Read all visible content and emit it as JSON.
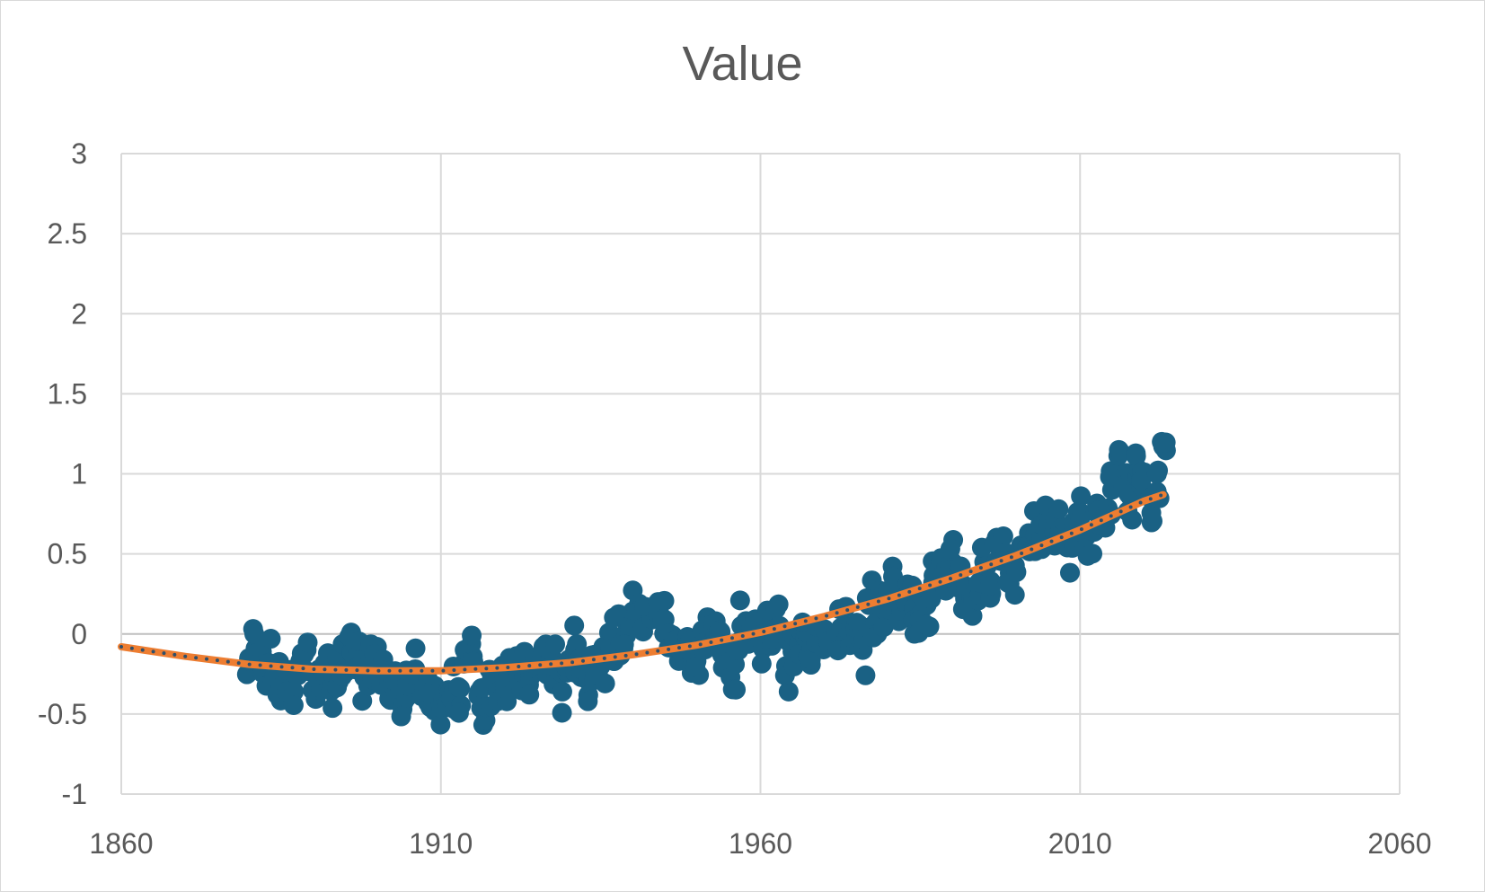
{
  "chart_data": {
    "type": "scatter",
    "title": "Value",
    "xlabel": "",
    "ylabel": "",
    "xlim": [
      1860,
      2060
    ],
    "ylim": [
      -1,
      3
    ],
    "x_ticks": [
      "1860",
      "1910",
      "1960",
      "2010",
      "2060"
    ],
    "y_ticks": [
      "-1",
      "-0.5",
      "0",
      "0.5",
      "1",
      "1.5",
      "2",
      "2.5",
      "3"
    ],
    "grid": true,
    "legend": "none",
    "colors": {
      "points": "#1a6184",
      "trend": "#ed7d31",
      "trend_dots": "#2f4f6a",
      "grid": "#d9d9d9",
      "text": "#595959"
    },
    "series": [
      {
        "type": "scatter",
        "x": [
          1880,
          1881,
          1882,
          1883,
          1884,
          1885,
          1886,
          1887,
          1888,
          1889,
          1890,
          1891,
          1892,
          1893,
          1894,
          1895,
          1896,
          1897,
          1898,
          1899,
          1900,
          1901,
          1902,
          1903,
          1904,
          1905,
          1906,
          1907,
          1908,
          1909,
          1910,
          1911,
          1912,
          1913,
          1914,
          1915,
          1916,
          1917,
          1918,
          1919,
          1920,
          1921,
          1922,
          1923,
          1924,
          1925,
          1926,
          1927,
          1928,
          1929,
          1930,
          1931,
          1932,
          1933,
          1934,
          1935,
          1936,
          1937,
          1938,
          1939,
          1940,
          1941,
          1942,
          1943,
          1944,
          1945,
          1946,
          1947,
          1948,
          1949,
          1950,
          1951,
          1952,
          1953,
          1954,
          1955,
          1956,
          1957,
          1958,
          1959,
          1960,
          1961,
          1962,
          1963,
          1964,
          1965,
          1966,
          1967,
          1968,
          1969,
          1970,
          1971,
          1972,
          1973,
          1974,
          1975,
          1976,
          1977,
          1978,
          1979,
          1980,
          1981,
          1982,
          1983,
          1984,
          1985,
          1986,
          1987,
          1988,
          1989,
          1990,
          1991,
          1992,
          1993,
          1994,
          1995,
          1996,
          1997,
          1998,
          1999,
          2000,
          2001,
          2002,
          2003,
          2004,
          2005,
          2006,
          2007,
          2008,
          2009,
          2010,
          2011,
          2012,
          2013,
          2014,
          2015,
          2016,
          2017,
          2018,
          2019,
          2020,
          2021,
          2022,
          2023
        ],
        "y": [
          -0.17,
          -0.09,
          -0.11,
          -0.18,
          -0.28,
          -0.33,
          -0.31,
          -0.36,
          -0.17,
          -0.1,
          -0.35,
          -0.22,
          -0.27,
          -0.31,
          -0.3,
          -0.22,
          -0.11,
          -0.11,
          -0.27,
          -0.17,
          -0.08,
          -0.16,
          -0.28,
          -0.37,
          -0.47,
          -0.26,
          -0.22,
          -0.39,
          -0.43,
          -0.48,
          -0.43,
          -0.44,
          -0.36,
          -0.34,
          -0.15,
          -0.14,
          -0.36,
          -0.46,
          -0.3,
          -0.27,
          -0.27,
          -0.19,
          -0.28,
          -0.26,
          -0.27,
          -0.22,
          -0.1,
          -0.22,
          -0.2,
          -0.36,
          -0.16,
          -0.1,
          -0.16,
          -0.29,
          -0.13,
          -0.2,
          -0.15,
          -0.03,
          -0.02,
          -0.01,
          0.13,
          0.19,
          0.07,
          0.09,
          0.2,
          0.09,
          -0.07,
          -0.03,
          -0.11,
          -0.11,
          -0.17,
          -0.07,
          0.01,
          0.08,
          -0.13,
          -0.14,
          -0.19,
          0.05,
          0.06,
          0.03,
          -0.03,
          0.06,
          0.03,
          0.05,
          -0.2,
          -0.11,
          -0.06,
          -0.02,
          -0.08,
          0.05,
          0.03,
          -0.08,
          0.01,
          0.16,
          -0.07,
          -0.01,
          -0.1,
          0.18,
          0.07,
          0.16,
          0.26,
          0.32,
          0.14,
          0.31,
          0.16,
          0.12,
          0.18,
          0.32,
          0.39,
          0.27,
          0.45,
          0.4,
          0.22,
          0.23,
          0.31,
          0.45,
          0.33,
          0.46,
          0.61,
          0.38,
          0.39,
          0.54,
          0.63,
          0.62,
          0.53,
          0.68,
          0.64,
          0.66,
          0.54,
          0.65,
          0.72,
          0.61,
          0.64,
          0.68,
          0.75,
          0.9,
          1.01,
          0.92,
          0.85,
          0.98,
          1.01,
          0.85,
          0.89,
          1.17
        ]
      },
      {
        "type": "polynomial_trendline",
        "x": [
          1860,
          1870,
          1880,
          1890,
          1900,
          1910,
          1920,
          1930,
          1940,
          1950,
          1960,
          1970,
          1980,
          1990,
          2000,
          2010,
          2020,
          2023
        ],
        "y": [
          -0.08,
          -0.14,
          -0.19,
          -0.22,
          -0.23,
          -0.23,
          -0.21,
          -0.18,
          -0.13,
          -0.07,
          0.01,
          0.11,
          0.22,
          0.35,
          0.49,
          0.65,
          0.83,
          0.87
        ]
      }
    ]
  }
}
